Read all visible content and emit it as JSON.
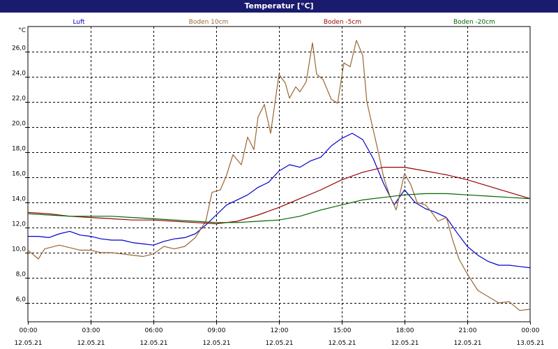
{
  "window": {
    "title": "Temperatur [°C]"
  },
  "chart_data": {
    "type": "line",
    "title": "Temperatur [°C]",
    "ylabel": "°C",
    "xlim": [
      0,
      24
    ],
    "ylim": [
      4.5,
      28
    ],
    "grid": true,
    "legend_placement": "top",
    "yticks": [
      {
        "v": 6,
        "label": "6,0"
      },
      {
        "v": 8,
        "label": "8,0"
      },
      {
        "v": 10,
        "label": "10,0"
      },
      {
        "v": 12,
        "label": "12,0"
      },
      {
        "v": 14,
        "label": "14,0"
      },
      {
        "v": 16,
        "label": "16,0"
      },
      {
        "v": 18,
        "label": "18,0"
      },
      {
        "v": 20,
        "label": "20,0"
      },
      {
        "v": 22,
        "label": "22,0"
      },
      {
        "v": 24,
        "label": "24,0"
      },
      {
        "v": 26,
        "label": "26,0"
      }
    ],
    "xticks": [
      {
        "v": 0,
        "time": "00:00",
        "date": "12.05.21"
      },
      {
        "v": 3,
        "time": "03:00",
        "date": "12.05.21"
      },
      {
        "v": 6,
        "time": "06:00",
        "date": "12.05.21"
      },
      {
        "v": 9,
        "time": "09:00",
        "date": "12.05.21"
      },
      {
        "v": 12,
        "time": "12:00",
        "date": "12.05.21"
      },
      {
        "v": 15,
        "time": "15:00",
        "date": "12.05.21"
      },
      {
        "v": 18,
        "time": "18:00",
        "date": "12.05.21"
      },
      {
        "v": 21,
        "time": "21:00",
        "date": "12.05.21"
      },
      {
        "v": 24,
        "time": "00:00",
        "date": "13.05.21"
      }
    ],
    "series": [
      {
        "name": "Luft",
        "color": "#0000cc",
        "points": [
          [
            0,
            11.3
          ],
          [
            0.5,
            11.3
          ],
          [
            1,
            11.2
          ],
          [
            1.5,
            11.5
          ],
          [
            2,
            11.7
          ],
          [
            2.5,
            11.4
          ],
          [
            3,
            11.3
          ],
          [
            3.5,
            11.1
          ],
          [
            4,
            11.0
          ],
          [
            4.5,
            11.0
          ],
          [
            5,
            10.8
          ],
          [
            5.5,
            10.7
          ],
          [
            6,
            10.6
          ],
          [
            6.5,
            10.9
          ],
          [
            7,
            11.1
          ],
          [
            7.5,
            11.2
          ],
          [
            8,
            11.5
          ],
          [
            8.5,
            12.2
          ],
          [
            9,
            13.0
          ],
          [
            9.5,
            13.8
          ],
          [
            10,
            14.2
          ],
          [
            10.5,
            14.6
          ],
          [
            11,
            15.2
          ],
          [
            11.5,
            15.6
          ],
          [
            12,
            16.5
          ],
          [
            12.5,
            17.0
          ],
          [
            13,
            16.8
          ],
          [
            13.5,
            17.3
          ],
          [
            14,
            17.6
          ],
          [
            14.5,
            18.5
          ],
          [
            15,
            19.1
          ],
          [
            15.5,
            19.5
          ],
          [
            16,
            19.0
          ],
          [
            16.5,
            17.5
          ],
          [
            17,
            15.5
          ],
          [
            17.5,
            13.8
          ],
          [
            18,
            15.0
          ],
          [
            18.5,
            14.0
          ],
          [
            19,
            13.5
          ],
          [
            19.5,
            13.2
          ],
          [
            20,
            12.8
          ],
          [
            20.5,
            11.6
          ],
          [
            21,
            10.5
          ],
          [
            21.5,
            9.8
          ],
          [
            22,
            9.3
          ],
          [
            22.5,
            9.0
          ],
          [
            23,
            9.0
          ],
          [
            23.5,
            8.9
          ],
          [
            24,
            8.8
          ]
        ]
      },
      {
        "name": "Boden 10cm",
        "color": "#996633",
        "points": [
          [
            0,
            10.2
          ],
          [
            0.5,
            9.5
          ],
          [
            0.8,
            10.3
          ],
          [
            1.5,
            10.6
          ],
          [
            2,
            10.4
          ],
          [
            2.5,
            10.2
          ],
          [
            3,
            10.2
          ],
          [
            3.5,
            10.0
          ],
          [
            4,
            10.0
          ],
          [
            4.5,
            9.9
          ],
          [
            5,
            9.8
          ],
          [
            5.5,
            9.7
          ],
          [
            6,
            9.9
          ],
          [
            6.5,
            10.5
          ],
          [
            7,
            10.3
          ],
          [
            7.5,
            10.5
          ],
          [
            8,
            11.2
          ],
          [
            8.5,
            12.5
          ],
          [
            8.8,
            14.8
          ],
          [
            9.2,
            15.0
          ],
          [
            9.5,
            16.2
          ],
          [
            9.8,
            17.8
          ],
          [
            10.2,
            17.0
          ],
          [
            10.5,
            19.2
          ],
          [
            10.8,
            18.2
          ],
          [
            11,
            20.8
          ],
          [
            11.3,
            21.8
          ],
          [
            11.6,
            19.5
          ],
          [
            12,
            24.2
          ],
          [
            12.3,
            23.5
          ],
          [
            12.5,
            22.3
          ],
          [
            12.8,
            23.2
          ],
          [
            13,
            22.8
          ],
          [
            13.3,
            23.6
          ],
          [
            13.6,
            26.7
          ],
          [
            13.8,
            24.2
          ],
          [
            14.1,
            23.8
          ],
          [
            14.5,
            22.2
          ],
          [
            14.8,
            21.9
          ],
          [
            15.1,
            25.1
          ],
          [
            15.4,
            24.8
          ],
          [
            15.7,
            26.9
          ],
          [
            16,
            25.7
          ],
          [
            16.2,
            22.0
          ],
          [
            16.5,
            19.8
          ],
          [
            16.8,
            17.6
          ],
          [
            17,
            16.0
          ],
          [
            17.3,
            14.5
          ],
          [
            17.6,
            13.4
          ],
          [
            18,
            16.3
          ],
          [
            18.3,
            15.4
          ],
          [
            18.6,
            14.0
          ],
          [
            19,
            13.8
          ],
          [
            19.3,
            13.2
          ],
          [
            19.6,
            12.5
          ],
          [
            20,
            12.8
          ],
          [
            20.3,
            11.0
          ],
          [
            20.6,
            9.5
          ],
          [
            21,
            8.3
          ],
          [
            21.5,
            7.0
          ],
          [
            22,
            6.5
          ],
          [
            22.5,
            6.0
          ],
          [
            23,
            6.1
          ],
          [
            23.5,
            5.4
          ],
          [
            24,
            5.5
          ]
        ]
      },
      {
        "name": "Boden -5cm",
        "color": "#990000",
        "points": [
          [
            0,
            13.2
          ],
          [
            1,
            13.1
          ],
          [
            2,
            12.9
          ],
          [
            3,
            12.8
          ],
          [
            4,
            12.7
          ],
          [
            5,
            12.6
          ],
          [
            6,
            12.6
          ],
          [
            7,
            12.5
          ],
          [
            8,
            12.4
          ],
          [
            9,
            12.3
          ],
          [
            10,
            12.5
          ],
          [
            11,
            13.0
          ],
          [
            12,
            13.6
          ],
          [
            13,
            14.3
          ],
          [
            14,
            15.0
          ],
          [
            15,
            15.8
          ],
          [
            16,
            16.4
          ],
          [
            17,
            16.8
          ],
          [
            18,
            16.8
          ],
          [
            19,
            16.5
          ],
          [
            20,
            16.2
          ],
          [
            21,
            15.8
          ],
          [
            22,
            15.3
          ],
          [
            23,
            14.8
          ],
          [
            24,
            14.3
          ]
        ]
      },
      {
        "name": "Boden -20cm",
        "color": "#006600",
        "points": [
          [
            0,
            13.1
          ],
          [
            1,
            13.0
          ],
          [
            2,
            12.9
          ],
          [
            3,
            12.9
          ],
          [
            4,
            12.9
          ],
          [
            5,
            12.8
          ],
          [
            6,
            12.7
          ],
          [
            7,
            12.6
          ],
          [
            8,
            12.5
          ],
          [
            9,
            12.4
          ],
          [
            10,
            12.4
          ],
          [
            11,
            12.5
          ],
          [
            12,
            12.6
          ],
          [
            13,
            12.9
          ],
          [
            14,
            13.4
          ],
          [
            15,
            13.8
          ],
          [
            16,
            14.2
          ],
          [
            17,
            14.4
          ],
          [
            18,
            14.6
          ],
          [
            19,
            14.7
          ],
          [
            20,
            14.7
          ],
          [
            21,
            14.6
          ],
          [
            22,
            14.5
          ],
          [
            23,
            14.4
          ],
          [
            24,
            14.3
          ]
        ]
      }
    ]
  }
}
